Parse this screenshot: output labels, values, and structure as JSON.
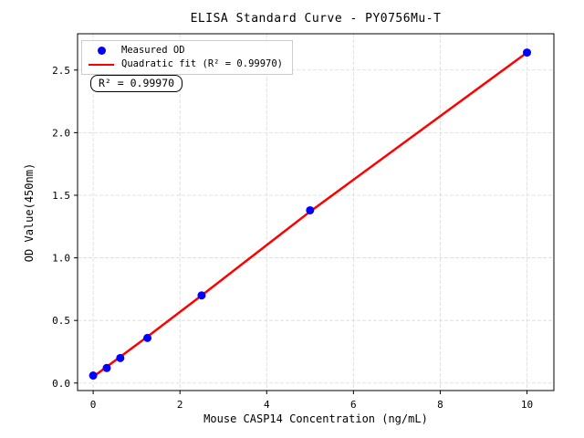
{
  "chart_data": {
    "type": "scatter",
    "title": "ELISA Standard Curve - PY0756Mu-T",
    "xlabel": "Mouse CASP14 Concentration (ng/mL)",
    "ylabel": "OD Value(450nm)",
    "xlim": [
      -0.36,
      10.62
    ],
    "ylim": [
      -0.06,
      2.79
    ],
    "x_ticks": [
      0,
      2,
      4,
      6,
      8,
      10
    ],
    "x_tick_labels": [
      "0",
      "2",
      "4",
      "6",
      "8",
      "10"
    ],
    "y_ticks": [
      0.0,
      0.5,
      1.0,
      1.5,
      2.0,
      2.5
    ],
    "y_tick_labels": [
      "0.0",
      "0.5",
      "1.0",
      "1.5",
      "2.0",
      "2.5"
    ],
    "grid": true,
    "legend_position": "upper left",
    "series": [
      {
        "name": "Measured OD",
        "type": "scatter",
        "color": "#0000ff",
        "x": [
          0,
          0.3125,
          0.625,
          1.25,
          2.5,
          5,
          10
        ],
        "y": [
          0.06,
          0.12,
          0.2,
          0.36,
          0.7,
          1.38,
          2.64
        ]
      },
      {
        "name": "Quadratic fit (R² = 0.99970)",
        "type": "line",
        "color": "#ff0000",
        "x": [
          0,
          0.3125,
          0.625,
          1.25,
          2.5,
          5,
          10
        ],
        "y": [
          0.05,
          0.13,
          0.21,
          0.37,
          0.7,
          1.37,
          2.64
        ]
      }
    ]
  },
  "legend": {
    "items": [
      {
        "label": "Measured OD",
        "marker": "circle",
        "color": "#0000ff"
      },
      {
        "label": "Quadratic fit (R² = 0.99970)",
        "marker": "line",
        "color": "#ff0000"
      }
    ]
  },
  "annotation": {
    "text": "R² = 0.99970"
  },
  "colors": {
    "scatter": "#0000ff",
    "fit_line": "#ff0000",
    "grid": "#d9d9d9",
    "spine": "#000000",
    "background": "#ffffff",
    "legend_border": "#cccccc"
  }
}
